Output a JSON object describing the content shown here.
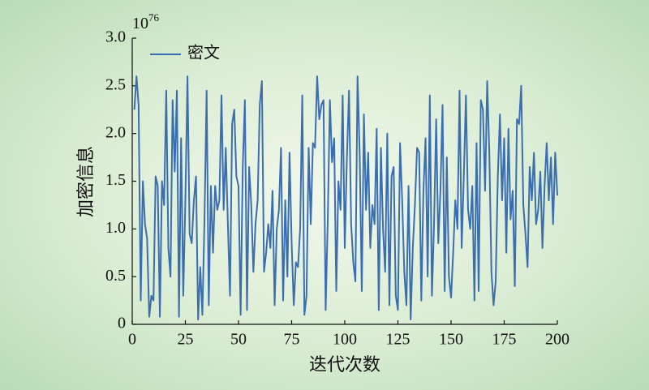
{
  "chart_data": {
    "type": "line",
    "y_multiplier": {
      "base": "10",
      "exponent": "76"
    },
    "xlabel": "迭代次数",
    "ylabel": "加密信息",
    "xlim": [
      0,
      200
    ],
    "xticks": [
      0,
      25,
      50,
      75,
      100,
      125,
      150,
      175,
      200
    ],
    "ylim": [
      0,
      3
    ],
    "yticks": [
      0,
      0.5,
      {
        "value": 1,
        "label": "1.0"
      },
      1.5,
      {
        "value": 2,
        "label": "2.0"
      },
      2.5,
      {
        "value": 3,
        "label": "3.0"
      }
    ],
    "legend": "upper-left",
    "x": [
      1,
      2,
      3,
      4,
      5,
      6,
      7,
      8,
      9,
      10,
      11,
      12,
      13,
      14,
      15,
      16,
      17,
      18,
      19,
      20,
      21,
      22,
      23,
      24,
      25,
      26,
      27,
      28,
      29,
      30,
      31,
      32,
      33,
      34,
      35,
      36,
      37,
      38,
      39,
      40,
      41,
      42,
      43,
      44,
      45,
      46,
      47,
      48,
      49,
      50,
      51,
      52,
      53,
      54,
      55,
      56,
      57,
      58,
      59,
      60,
      61,
      62,
      63,
      64,
      65,
      66,
      67,
      68,
      69,
      70,
      71,
      72,
      73,
      74,
      75,
      76,
      77,
      78,
      79,
      80,
      81,
      82,
      83,
      84,
      85,
      86,
      87,
      88,
      89,
      90,
      91,
      92,
      93,
      94,
      95,
      96,
      97,
      98,
      99,
      100,
      101,
      102,
      103,
      104,
      105,
      106,
      107,
      108,
      109,
      110,
      111,
      112,
      113,
      114,
      115,
      116,
      117,
      118,
      119,
      120,
      121,
      122,
      123,
      124,
      125,
      126,
      127,
      128,
      129,
      130,
      131,
      132,
      133,
      134,
      135,
      136,
      137,
      138,
      139,
      140,
      141,
      142,
      143,
      144,
      145,
      146,
      147,
      148,
      149,
      150,
      151,
      152,
      153,
      154,
      155,
      156,
      157,
      158,
      159,
      160,
      161,
      162,
      163,
      164,
      165,
      166,
      167,
      168,
      169,
      170,
      171,
      172,
      173,
      174,
      175,
      176,
      177,
      178,
      179,
      180,
      181,
      182,
      183,
      184,
      185,
      186,
      187,
      188,
      189,
      190,
      191,
      192,
      193,
      194,
      195,
      196,
      197,
      198,
      199,
      200
    ],
    "series": [
      {
        "name": "密文",
        "color": "#3a6eb0",
        "values": [
          2.25,
          2.6,
          2.3,
          0.25,
          1.5,
          1.05,
          0.9,
          0.08,
          0.3,
          0.25,
          1.55,
          1.45,
          0.08,
          1.5,
          1.25,
          2.45,
          0.8,
          0.5,
          2.35,
          1.6,
          2.45,
          0.08,
          1.95,
          0.3,
          1.3,
          2.6,
          0.95,
          0.85,
          1.3,
          1.55,
          0.05,
          0.6,
          0.1,
          1.1,
          2.45,
          0.2,
          1.45,
          0.75,
          1.45,
          1.2,
          1.3,
          2.4,
          1.2,
          1.85,
          1.05,
          0.3,
          2.1,
          2.25,
          1.55,
          1.45,
          0.1,
          1.65,
          2.35,
          0.15,
          1.65,
          1.25,
          0.55,
          1.05,
          1.3,
          2.3,
          2.55,
          0.55,
          0.75,
          1.05,
          0.8,
          1.4,
          0.2,
          1.0,
          1.2,
          1.85,
          0.25,
          1.3,
          0.5,
          1.8,
          0.85,
          0.2,
          0.65,
          0.6,
          1.0,
          2.4,
          0.1,
          0.3,
          1.85,
          1.05,
          1.9,
          1.85,
          2.6,
          2.15,
          2.3,
          2.35,
          0.15,
          1.1,
          2.35,
          1.7,
          1.95,
          0.35,
          1.5,
          1.2,
          2.4,
          0.8,
          1.75,
          2.45,
          1.05,
          0.65,
          0.45,
          2.6,
          1.8,
          0.35,
          2.2,
          1.2,
          1.8,
          0.8,
          1.25,
          1.05,
          2.05,
          0.15,
          1.85,
          1.0,
          0.55,
          2.0,
          0.2,
          1.55,
          1.65,
          0.3,
          0.15,
          1.9,
          1.3,
          0.55,
          0.2,
          1.45,
          0.05,
          0.8,
          1.25,
          1.85,
          1.8,
          0.25,
          1.4,
          1.95,
          0.5,
          2.4,
          0.3,
          1.05,
          2.15,
          0.85,
          1.4,
          2.3,
          0.35,
          1.75,
          0.5,
          0.28,
          0.75,
          1.3,
          1.0,
          2.45,
          0.8,
          1.55,
          2.4,
          1.2,
          1.0,
          1.45,
          0.25,
          1.9,
          0.35,
          2.35,
          2.25,
          1.4,
          2.55,
          1.8,
          0.55,
          0.2,
          0.45,
          1.55,
          2.2,
          1.3,
          1.95,
          0.75,
          2.05,
          1.1,
          1.4,
          0.4,
          2.15,
          2.1,
          2.5,
          1.25,
          0.95,
          0.6,
          1.65,
          1.3,
          1.8,
          1.05,
          1.2,
          1.6,
          0.8,
          1.45,
          1.9,
          1.3,
          1.75,
          1.05,
          1.8,
          1.35
        ]
      }
    ]
  }
}
